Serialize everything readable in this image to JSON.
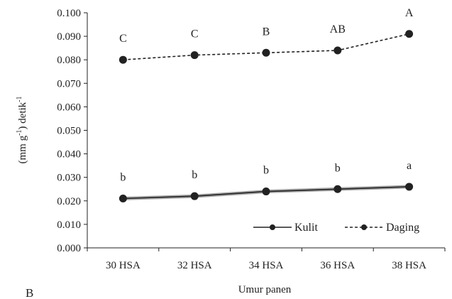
{
  "chart_data": {
    "type": "line",
    "categories": [
      "30 HSA",
      "32 HSA",
      "34 HSA",
      "36 HSA",
      "38 HSA"
    ],
    "series": [
      {
        "name": "Kulit",
        "values": [
          0.021,
          0.022,
          0.024,
          0.025,
          0.026
        ],
        "labels": [
          "b",
          "b",
          "b",
          "b",
          "a"
        ],
        "line_style": "solid",
        "color": "#222222"
      },
      {
        "name": "Daging",
        "values": [
          0.08,
          0.082,
          0.083,
          0.084,
          0.091
        ],
        "labels": [
          "C",
          "C",
          "B",
          "AB",
          "A"
        ],
        "line_style": "dashed",
        "color": "#222222"
      }
    ],
    "xlabel": "Umur panen",
    "ylabel_prefix": "(mm g",
    "ylabel_sup1": "-1",
    "ylabel_mid": ") detik",
    "ylabel_sup2": "-1",
    "ylim": [
      0,
      0.1
    ],
    "yticks": [
      "0.000",
      "0.010",
      "0.020",
      "0.030",
      "0.040",
      "0.050",
      "0.060",
      "0.070",
      "0.080",
      "0.090",
      "0.100"
    ],
    "grid": false,
    "legend_position": "bottom-right",
    "panel_label": "B"
  }
}
